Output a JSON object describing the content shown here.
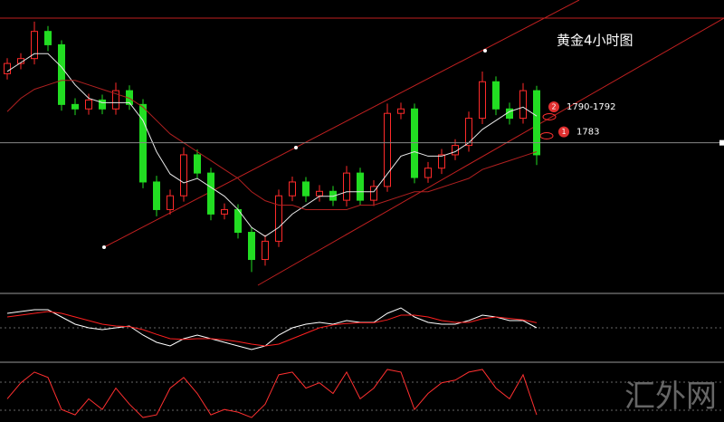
{
  "chart_data": {
    "type": "candlestick",
    "title": "黄金4小时图",
    "open": [
      1798.5,
      1800.8,
      1801.9,
      1808,
      1805,
      1791.6,
      1790.6,
      1792.6,
      1790.6,
      1794.7,
      1791.6,
      1774.2,
      1768,
      1771.1,
      1780.3,
      1776.2,
      1767,
      1768,
      1762.9,
      1756.8,
      1760.9,
      1771.1,
      1774.2,
      1771.1,
      1772.1,
      1770.1,
      1776.2,
      1770.1,
      1773.2,
      1789.6,
      1790.6,
      1775.2,
      1777.3,
      1780.3,
      1782.4,
      1788.5,
      1796.7,
      1790.6,
      1788.5,
      1794.7
    ],
    "high": [
      1802,
      1803.1,
      1810.2,
      1809.2,
      1806,
      1793,
      1794,
      1793.8,
      1796.5,
      1795.9,
      1792.8,
      1775.6,
      1772.5,
      1782,
      1781.5,
      1777.4,
      1769.4,
      1769.2,
      1764,
      1762.3,
      1772.5,
      1775.4,
      1775.3,
      1773.5,
      1773.3,
      1777.8,
      1777.4,
      1774.6,
      1791.8,
      1792,
      1791.8,
      1778.7,
      1781.6,
      1783.8,
      1790,
      1799,
      1797.9,
      1792,
      1796.4,
      1795.8
    ],
    "low": [
      1797.2,
      1799.5,
      1800.6,
      1803.6,
      1790.2,
      1789.2,
      1789.3,
      1789.4,
      1789.3,
      1790.4,
      1772.8,
      1766.5,
      1766.9,
      1769.8,
      1774.9,
      1765.6,
      1765.8,
      1761.5,
      1754,
      1755.4,
      1759.6,
      1769.9,
      1769.7,
      1769.8,
      1768.8,
      1768.7,
      1768.9,
      1768.8,
      1772,
      1788.3,
      1773.9,
      1774,
      1776,
      1779.1,
      1781,
      1787.2,
      1789.2,
      1787.1,
      1787.3,
      1778
    ],
    "close": [
      1800.8,
      1801.9,
      1808,
      1805,
      1791.6,
      1790.6,
      1792.6,
      1790.6,
      1794.7,
      1791.6,
      1774.2,
      1768,
      1771.1,
      1780.3,
      1776.2,
      1767,
      1768,
      1762.9,
      1756.8,
      1760.9,
      1771.1,
      1774.2,
      1771.1,
      1772.1,
      1770.1,
      1776.2,
      1770.1,
      1773.2,
      1789.6,
      1790.6,
      1775.2,
      1777.3,
      1780.3,
      1782.4,
      1788.5,
      1796.7,
      1790.6,
      1788.5,
      1794.7,
      1780.3
    ],
    "up_color": "#ff2a2a",
    "down_color": "#22dd22",
    "moving_averages": [
      {
        "color": "#e8e8e8",
        "values": [
          1799,
          1801,
          1803,
          1803,
          1800,
          1796,
          1793,
          1792,
          1792,
          1792,
          1788,
          1781,
          1776,
          1774,
          1775,
          1773,
          1771,
          1768,
          1764,
          1762,
          1764,
          1767,
          1769,
          1771,
          1771,
          1772,
          1772,
          1772,
          1776,
          1780,
          1781,
          1780,
          1780,
          1781,
          1783,
          1786,
          1788,
          1790,
          1791,
          1789
        ]
      },
      {
        "color": "#b02020",
        "values": [
          1790,
          1793,
          1795,
          1796,
          1797,
          1797,
          1796,
          1795,
          1794,
          1793,
          1791,
          1788,
          1785,
          1783,
          1781,
          1779,
          1777,
          1775,
          1772,
          1770,
          1769,
          1769,
          1768,
          1768,
          1768,
          1768,
          1769,
          1769,
          1770,
          1771,
          1772,
          1772,
          1773,
          1774,
          1775,
          1777,
          1778,
          1779,
          1780,
          1781
        ]
      }
    ],
    "ylim": [
      1750,
      1812
    ],
    "levels": [
      {
        "value": 1783,
        "marker": "1"
      }
    ],
    "annotations": [
      {
        "text": "1790-1792",
        "marker": "2"
      }
    ],
    "macd": {
      "ylim": [
        -8,
        8
      ],
      "series": [
        {
          "color": "#ffffff",
          "values": [
            4,
            4.5,
            5,
            5,
            3,
            1,
            0,
            -0.5,
            0,
            0.5,
            -2,
            -4,
            -5,
            -3,
            -2,
            -3,
            -4,
            -5,
            -6,
            -5,
            -2,
            0,
            1,
            1.5,
            1,
            2,
            1.5,
            1.5,
            4,
            5.5,
            3,
            1.5,
            1,
            1,
            2,
            3.5,
            3,
            2,
            2,
            0
          ]
        },
        {
          "color": "#ff2020",
          "values": [
            3,
            3.5,
            4,
            4.5,
            4,
            3,
            2,
            1,
            0.5,
            0.3,
            -0.5,
            -1.8,
            -3,
            -3.2,
            -3,
            -3,
            -3.3,
            -3.8,
            -4.5,
            -5,
            -4.5,
            -3,
            -1.5,
            0,
            0.8,
            1.2,
            1.4,
            1.4,
            2.2,
            3.5,
            3.5,
            3,
            2,
            1.5,
            1.5,
            2.5,
            3,
            2.6,
            2.2,
            1.4
          ]
        }
      ]
    },
    "stochastic": {
      "ylim": [
        0,
        100
      ],
      "color": "#ff3030",
      "values": [
        40,
        70,
        90,
        80,
        20,
        10,
        40,
        20,
        60,
        30,
        5,
        10,
        60,
        80,
        50,
        10,
        20,
        15,
        5,
        30,
        85,
        90,
        60,
        70,
        50,
        90,
        40,
        60,
        95,
        90,
        20,
        50,
        70,
        75,
        90,
        95,
        60,
        40,
        85,
        10
      ]
    },
    "watermark": "汇外网"
  }
}
